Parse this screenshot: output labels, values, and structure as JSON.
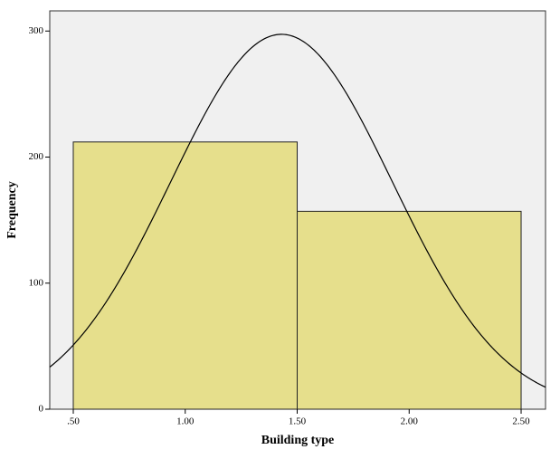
{
  "chart_data": {
    "type": "histogram",
    "x_label": "Building type",
    "y_label": "Frequency",
    "bins": [
      0.5,
      1.5,
      2.5
    ],
    "counts": [
      212,
      157
    ],
    "color": "#e6df8c",
    "xlim": [
      0.395,
      2.609
    ],
    "ylim": [
      0,
      316
    ],
    "xticks": [
      {
        "value": 0.5,
        "label": ".50"
      },
      {
        "value": 1,
        "label": "1.00"
      },
      {
        "value": 1.5,
        "label": "1.50"
      },
      {
        "value": 2,
        "label": "2.00"
      },
      {
        "value": 2.5,
        "label": "2.50"
      }
    ],
    "yticks": [
      0,
      100,
      200,
      300
    ],
    "normal_curve": {
      "mean": 1.43,
      "sd": 0.495,
      "n": 369
    }
  }
}
